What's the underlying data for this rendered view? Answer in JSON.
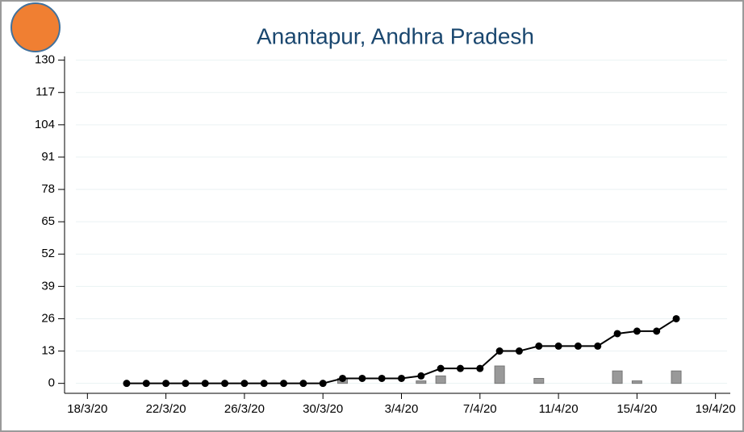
{
  "chart_data": {
    "type": "line",
    "title": "Anantapur, Andhra Pradesh",
    "x": [
      "20/3/20",
      "21/3/20",
      "22/3/20",
      "23/3/20",
      "24/3/20",
      "25/3/20",
      "26/3/20",
      "27/3/20",
      "28/3/20",
      "29/3/20",
      "30/3/20",
      "31/3/20",
      "1/4/20",
      "2/4/20",
      "3/4/20",
      "4/4/20",
      "5/4/20",
      "6/4/20",
      "7/4/20",
      "8/4/20",
      "9/4/20",
      "10/4/20",
      "11/4/20",
      "12/4/20",
      "13/4/20",
      "14/4/20",
      "15/4/20",
      "16/4/20",
      "17/4/20"
    ],
    "series": [
      {
        "type": "bar",
        "color": "#999999",
        "values": [
          0,
          0,
          0,
          0,
          0,
          0,
          0,
          0,
          0,
          0,
          0,
          2,
          0,
          0,
          0,
          1,
          3,
          0,
          0,
          7,
          0,
          2,
          0,
          0,
          0,
          5,
          1,
          0,
          5
        ]
      },
      {
        "type": "line",
        "color": "#000000",
        "values": [
          0,
          0,
          0,
          0,
          0,
          0,
          0,
          0,
          0,
          0,
          0,
          2,
          2,
          2,
          2,
          3,
          6,
          6,
          6,
          13,
          13,
          15,
          15,
          15,
          15,
          20,
          21,
          21,
          26
        ]
      }
    ],
    "xlim": [
      "17/3/20",
      "20/4/20"
    ],
    "xticks": [
      "18/3/20",
      "22/3/20",
      "26/3/20",
      "30/3/20",
      "3/4/20",
      "7/4/20",
      "11/4/20",
      "15/4/20",
      "19/4/20"
    ],
    "ylim": [
      -4,
      131.5
    ],
    "yticks": [
      0,
      13,
      26,
      39,
      52,
      65,
      78,
      91,
      104,
      117,
      130
    ],
    "grid": true
  }
}
